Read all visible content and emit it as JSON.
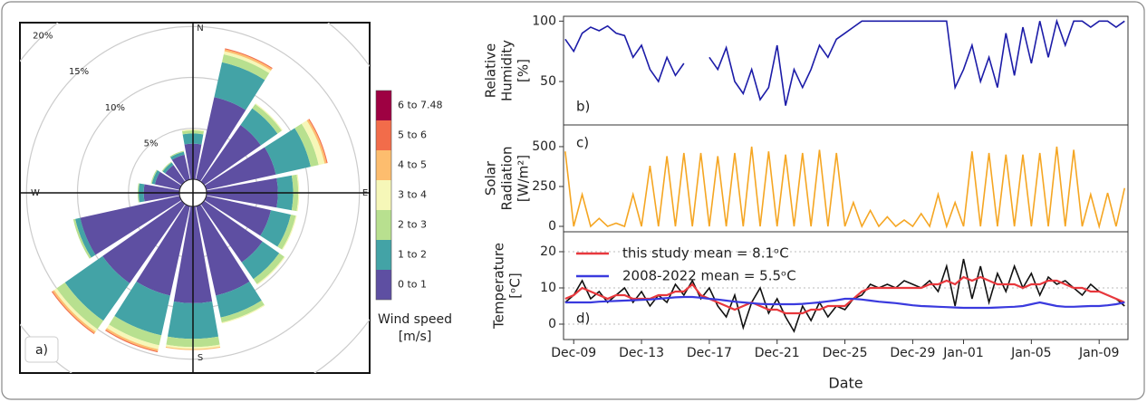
{
  "chart_data": [
    {
      "type": "windrose",
      "panel_label": "a)",
      "theta": [
        0,
        22.5,
        45,
        67.5,
        90,
        112.5,
        135,
        157.5,
        180,
        202.5,
        225,
        247.5,
        270,
        292.5,
        315,
        337.5
      ],
      "direction_labels": [
        {
          "value": 0,
          "label": "N"
        },
        {
          "value": 90,
          "label": "E"
        },
        {
          "value": 180,
          "label": "S"
        },
        {
          "value": 270,
          "label": "W"
        }
      ],
      "rlim": [
        0,
        21
      ],
      "rticks": [
        {
          "value": 5,
          "label": "5%"
        },
        {
          "value": 10,
          "label": "10%"
        },
        {
          "value": 15,
          "label": "15%"
        },
        {
          "value": 20,
          "label": "20%"
        }
      ],
      "legend_title": [
        "Wind speed",
        "[m/s]"
      ],
      "series": [
        {
          "name": "0 to 1",
          "color": "#5e4fa2",
          "values": [
            3.5,
            8.3,
            6.8,
            7,
            7,
            6.5,
            7,
            9,
            9.5,
            9,
            9.5,
            10,
            3.5,
            2.5,
            2,
            2.5
          ]
        },
        {
          "name": "1 to 2",
          "color": "#43a3a6",
          "values": [
            1,
            3.5,
            2,
            3.5,
            1.5,
            2,
            2,
            2.2,
            3.5,
            4,
            4.5,
            0.5,
            0.5,
            0.3,
            0.3,
            0.3
          ]
        },
        {
          "name": "2 to 3",
          "color": "#b8e08f",
          "values": [
            0.3,
            0.8,
            0.5,
            0.8,
            0.5,
            0.5,
            0.6,
            0.5,
            0.8,
            1,
            1,
            0.2,
            0.1,
            0.1,
            0.1,
            0.1
          ]
        },
        {
          "name": "3 to 4",
          "color": "#f6f7b8",
          "values": [
            0.1,
            0.3,
            0.1,
            0.6,
            0.1,
            0.1,
            0.1,
            0.1,
            0.2,
            0.4,
            0.3,
            0,
            0,
            0,
            0,
            0
          ]
        },
        {
          "name": "4 to 5",
          "color": "#fdbd6e",
          "values": [
            0,
            0.2,
            0,
            0.2,
            0,
            0,
            0,
            0,
            0.1,
            0.2,
            0.2,
            0,
            0,
            0,
            0,
            0
          ]
        },
        {
          "name": "5 to 6",
          "color": "#f26c4a",
          "values": [
            0,
            0.1,
            0,
            0.1,
            0,
            0,
            0,
            0,
            0,
            0.1,
            0.1,
            0,
            0,
            0,
            0,
            0
          ]
        },
        {
          "name": "6 to 7.48",
          "color": "#9e0142",
          "values": [
            0,
            0,
            0,
            0,
            0,
            0,
            0,
            0,
            0,
            0,
            0,
            0,
            0,
            0,
            0,
            0
          ]
        }
      ]
    },
    {
      "type": "line",
      "panel_label": "b)",
      "ylabel": [
        "Relative",
        "Humidity",
        "[%]"
      ],
      "xlim": [
        8.4,
        41.7
      ],
      "ylim": [
        14,
        104
      ],
      "yticks": [
        50,
        100
      ],
      "x": [
        8.5,
        9,
        9.5,
        10,
        10.5,
        11,
        11.5,
        12,
        12.5,
        13,
        13.5,
        14,
        14.5,
        15,
        15.5,
        16,
        16.5,
        17,
        17.5,
        18,
        18.5,
        19,
        19.5,
        20,
        20.5,
        21,
        21.5,
        22,
        22.5,
        23,
        23.5,
        24,
        24.5,
        25,
        25.5,
        26,
        26.5,
        27,
        27.5,
        28,
        28.5,
        29,
        29.5,
        30,
        30.5,
        31,
        31.5,
        32,
        32.5,
        33,
        33.5,
        34,
        34.5,
        35,
        35.5,
        36,
        36.5,
        37,
        37.5,
        38,
        38.5,
        39,
        39.5,
        40,
        40.5,
        41,
        41.5
      ],
      "series": [
        {
          "color": "#1c1ca8",
          "values": [
            85,
            75,
            90,
            95,
            92,
            96,
            90,
            88,
            70,
            80,
            60,
            50,
            70,
            55,
            65,
            null,
            null,
            70,
            60,
            78,
            50,
            40,
            60,
            35,
            45,
            80,
            30,
            60,
            45,
            60,
            80,
            70,
            85,
            90,
            95,
            100,
            100,
            100,
            100,
            100,
            100,
            100,
            100,
            100,
            100,
            100,
            45,
            60,
            80,
            50,
            70,
            45,
            90,
            55,
            95,
            65,
            100,
            70,
            100,
            80,
            100,
            100,
            95,
            100,
            100,
            95,
            100
          ]
        }
      ]
    },
    {
      "type": "line",
      "panel_label": "c)",
      "ylabel": [
        "Solar",
        "Radiation",
        "[W/m²]"
      ],
      "xlim": [
        8.4,
        41.7
      ],
      "ylim": [
        -34,
        636
      ],
      "yticks": [
        0,
        250,
        500
      ],
      "x": [
        8.5,
        9,
        9.5,
        10,
        10.5,
        11,
        11.5,
        12,
        12.5,
        13,
        13.5,
        14,
        14.5,
        15,
        15.5,
        16,
        16.5,
        17,
        17.5,
        18,
        18.5,
        19,
        19.5,
        20,
        20.5,
        21,
        21.5,
        22,
        22.5,
        23,
        23.5,
        24,
        24.5,
        25,
        25.5,
        26,
        26.5,
        27,
        27.5,
        28,
        28.5,
        29,
        29.5,
        30,
        30.5,
        31,
        31.5,
        32,
        32.5,
        33,
        33.5,
        34,
        34.5,
        35,
        35.5,
        36,
        36.5,
        37,
        37.5,
        38,
        38.5,
        39,
        39.5,
        40,
        40.5,
        41,
        41.5
      ],
      "series": [
        {
          "color": "#f5a623",
          "values": [
            470,
            0,
            200,
            0,
            50,
            0,
            20,
            0,
            200,
            0,
            380,
            0,
            440,
            0,
            460,
            0,
            460,
            0,
            440,
            0,
            460,
            0,
            500,
            0,
            470,
            0,
            450,
            0,
            460,
            0,
            480,
            0,
            460,
            0,
            150,
            0,
            100,
            0,
            60,
            0,
            40,
            0,
            80,
            0,
            200,
            0,
            150,
            0,
            470,
            0,
            460,
            0,
            450,
            0,
            450,
            0,
            460,
            0,
            500,
            0,
            480,
            0,
            200,
            0,
            210,
            0,
            240
          ]
        }
      ]
    },
    {
      "type": "line",
      "panel_label": "d)",
      "ylabel": [
        "Temperature",
        "[ᵒC]"
      ],
      "xlabel": "Date",
      "grid": true,
      "legend": "upper left",
      "xlim": [
        8.4,
        41.7
      ],
      "ylim": [
        -4.25,
        25.5
      ],
      "yticks": [
        0,
        10,
        20
      ],
      "xticks": [
        {
          "value": 9,
          "label": "Dec-09"
        },
        {
          "value": 13,
          "label": "Dec-13"
        },
        {
          "value": 17,
          "label": "Dec-17"
        },
        {
          "value": 21,
          "label": "Dec-21"
        },
        {
          "value": 25,
          "label": "Dec-25"
        },
        {
          "value": 29,
          "label": "Dec-29"
        },
        {
          "value": 32,
          "label": "Jan-01"
        },
        {
          "value": 36,
          "label": "Jan-05"
        },
        {
          "value": 40,
          "label": "Jan-09"
        }
      ],
      "x": [
        8.5,
        9,
        9.5,
        10,
        10.5,
        11,
        11.5,
        12,
        12.5,
        13,
        13.5,
        14,
        14.5,
        15,
        15.5,
        16,
        16.5,
        17,
        17.5,
        18,
        18.5,
        19,
        19.5,
        20,
        20.5,
        21,
        21.5,
        22,
        22.5,
        23,
        23.5,
        24,
        24.5,
        25,
        25.5,
        26,
        26.5,
        27,
        27.5,
        28,
        28.5,
        29,
        29.5,
        30,
        30.5,
        31,
        31.5,
        32,
        32.5,
        33,
        33.5,
        34,
        34.5,
        35,
        35.5,
        36,
        36.5,
        37,
        37.5,
        38,
        38.5,
        39,
        39.5,
        40,
        40.5,
        41,
        41.5
      ],
      "series": [
        {
          "color": "#111111",
          "values": [
            6,
            8,
            12,
            7,
            9,
            6,
            8,
            10,
            6,
            9,
            5,
            8,
            6,
            11,
            8,
            12,
            7,
            10,
            5,
            2,
            8,
            -1,
            6,
            10,
            3,
            7,
            2,
            -2,
            5,
            1,
            6,
            2,
            5,
            4,
            7,
            8,
            11,
            10,
            11,
            10,
            12,
            11,
            10,
            12,
            9,
            16,
            5,
            18,
            7,
            16,
            6,
            14,
            9,
            16,
            10,
            14,
            8,
            13,
            11,
            12,
            10,
            8,
            11,
            9,
            8,
            7,
            5
          ]
        },
        {
          "name": "this study mean = 8.1ᵒC",
          "color": "#e8383d",
          "values": [
            7,
            8,
            10,
            9,
            8,
            7,
            8,
            8,
            7,
            7,
            7,
            8,
            8,
            9,
            9,
            11,
            8,
            7,
            6,
            5,
            4,
            5,
            6,
            5,
            4,
            4,
            3,
            3,
            3,
            4,
            4,
            5,
            5,
            5,
            7,
            9,
            10,
            10,
            10,
            10,
            10,
            10,
            10,
            11,
            11,
            12,
            11,
            13,
            12,
            13,
            12,
            11,
            11,
            11,
            10,
            11,
            11,
            12,
            12,
            11,
            10,
            10,
            9,
            9,
            8,
            7,
            6
          ]
        },
        {
          "name": "2008-2022 mean = 5.5ᵒC",
          "color": "#3a3ade",
          "values": [
            6,
            6,
            6,
            6,
            6.2,
            6.3,
            6.4,
            6.5,
            6.6,
            6.7,
            6.8,
            7,
            7.2,
            7.4,
            7.5,
            7.5,
            7.3,
            7,
            6.8,
            6.5,
            6.2,
            6,
            5.8,
            5.6,
            5.5,
            5.5,
            5.5,
            5.5,
            5.6,
            5.8,
            6,
            6.3,
            6.6,
            7,
            7,
            6.8,
            6.5,
            6.2,
            6,
            5.8,
            5.5,
            5.2,
            5,
            4.9,
            4.8,
            4.7,
            4.6,
            4.5,
            4.5,
            4.5,
            4.5,
            4.6,
            4.7,
            4.8,
            5,
            5.5,
            6,
            5.5,
            5,
            4.8,
            4.8,
            4.9,
            5,
            5,
            5.2,
            5.5,
            6
          ]
        }
      ]
    }
  ]
}
